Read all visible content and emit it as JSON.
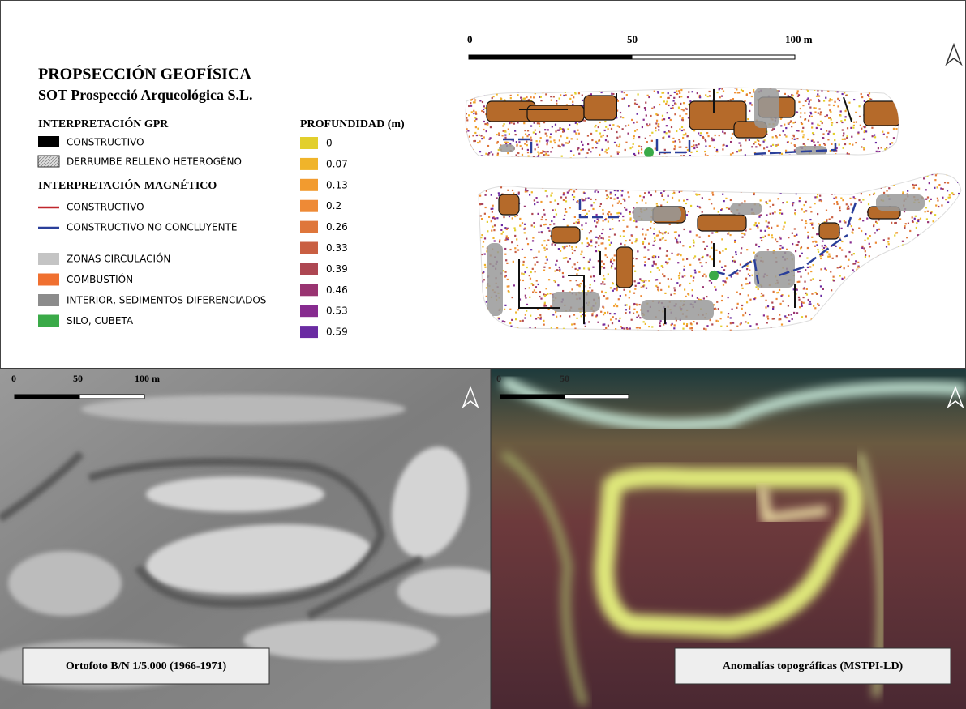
{
  "title": "PROPSECCIÓN GEOFÍSICA",
  "subtitle": "SOT Prospecció Arqueológica S.L.",
  "legend": {
    "gpr": {
      "heading": "INTERPRETACIÓN GPR",
      "items": [
        "CONSTRUCTIVO",
        "DERRUMBE RELLENO HETEROGÉNO"
      ]
    },
    "magnetic": {
      "heading": "INTERPRETACIÓN MAGNÉTICO",
      "items": [
        "CONSTRUCTIVO",
        "CONSTRUCTIVO NO CONCLUYENTE"
      ]
    },
    "zones": [
      "ZONAS CIRCULACIÓN",
      "COMBUSTIÓN",
      "INTERIOR, SEDIMENTOS DIFERENCIADOS",
      "SILO, CUBETA"
    ],
    "depth": {
      "heading": "PROFUNDIDAD (m)",
      "values": [
        0,
        0.07,
        0.13,
        0.2,
        0.26,
        0.33,
        0.39,
        0.46,
        0.53,
        0.59
      ],
      "colors": [
        "#e2cf2c",
        "#f0b42a",
        "#f29b2f",
        "#ee8a36",
        "#df763b",
        "#c95f42",
        "#ad4752",
        "#993471",
        "#872b8f",
        "#6a2ba2"
      ]
    }
  },
  "scale_bars": {
    "top": [
      "0",
      "50",
      "100 m"
    ],
    "orthophoto": [
      "0",
      "50",
      "100 m"
    ],
    "anomalies": [
      "0",
      "50"
    ]
  },
  "panels": {
    "orthophoto": "Ortofoto B/N 1/5.000 (1966-1971)",
    "anomalies": "Anomalías topográficas (MSTPI-LD)"
  }
}
